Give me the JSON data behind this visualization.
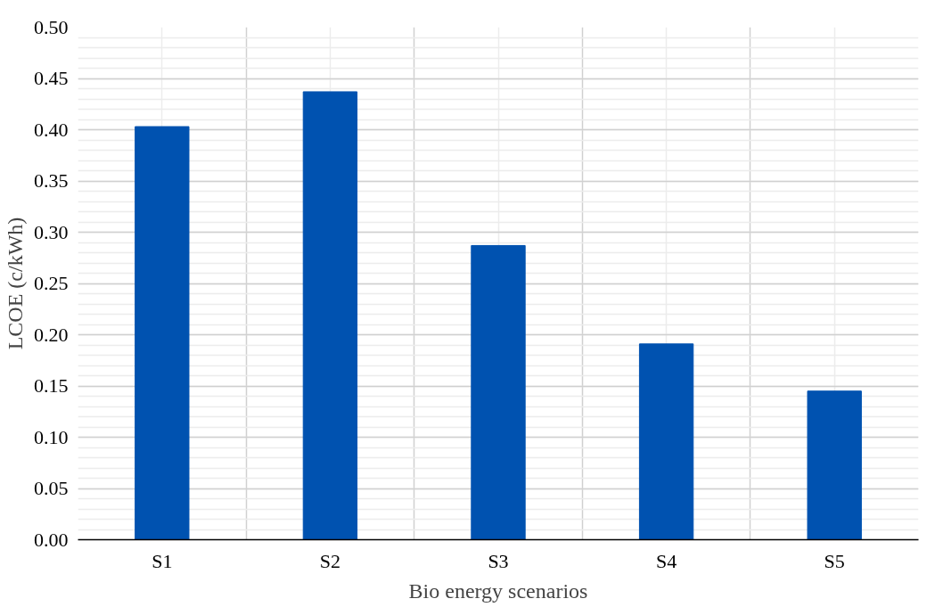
{
  "chart_data": {
    "type": "bar",
    "xlabel": "Bio energy scenarios",
    "ylabel": "LCOE (c/kWh)",
    "categories": [
      "S1",
      "S2",
      "S3",
      "S4",
      "S5"
    ],
    "values": [
      0.403,
      0.437,
      0.287,
      0.191,
      0.145
    ],
    "color": "#0052b0",
    "ylim": [
      0,
      0.5
    ],
    "yticks": [
      {
        "value": 0,
        "label": "0.00"
      },
      {
        "value": 0.05,
        "label": "0.05"
      },
      {
        "value": 0.1,
        "label": "0.10"
      },
      {
        "value": 0.15,
        "label": "0.15"
      },
      {
        "value": 0.2,
        "label": "0.20"
      },
      {
        "value": 0.25,
        "label": "0.25"
      },
      {
        "value": 0.3,
        "label": "0.30"
      },
      {
        "value": 0.35,
        "label": "0.35"
      },
      {
        "value": 0.4,
        "label": "0.40"
      },
      {
        "value": 0.45,
        "label": "0.45"
      },
      {
        "value": 0.5,
        "label": "0.50"
      }
    ],
    "grid": true
  }
}
